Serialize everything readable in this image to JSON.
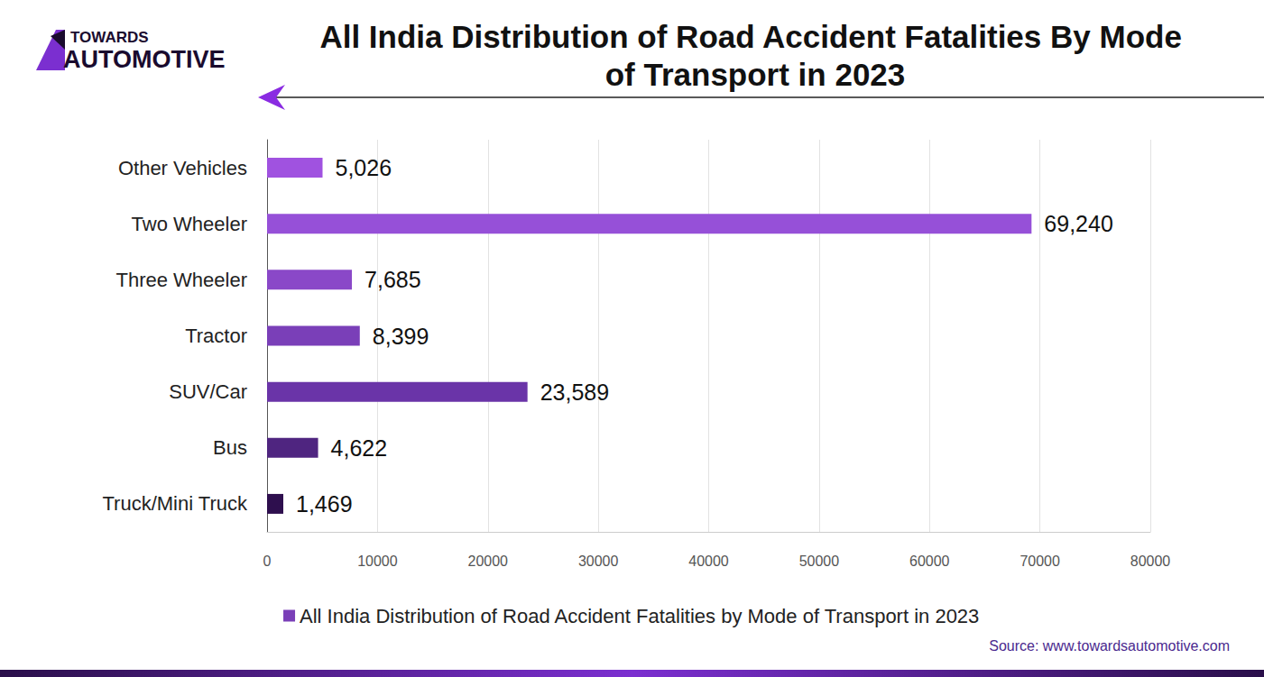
{
  "chart_data": {
    "type": "bar",
    "orientation": "horizontal",
    "title": "All India Distribution of Road Accident Fatalities By Mode of Transport in 2023",
    "logo": [
      "TOWARDS",
      "AUTOMOTIVE"
    ],
    "source": "Source: www.towardsautomotive.com",
    "categories": [
      "Other Vehicles",
      "Two Wheeler",
      "Three Wheeler",
      "Tractor",
      "SUV/Car",
      "Bus",
      "Truck/Mini Truck"
    ],
    "series": [
      {
        "name": "All India Distribution of Road Accident Fatalities by Mode of Transport in 2023",
        "values": [
          5026,
          69240,
          7685,
          8399,
          23589,
          4622,
          1469
        ],
        "value_labels": [
          "5,026",
          "69,240",
          "7,685",
          "8,399",
          "23,589",
          "4,622",
          "1,469"
        ]
      }
    ],
    "colors": [
      "#a052e0",
      "#9650d8",
      "#8a48c8",
      "#7a3fb8",
      "#6a34a8",
      "#4f2580",
      "#2e0f4e"
    ],
    "xlim": [
      0,
      80000
    ],
    "xticks": [
      0,
      10000,
      20000,
      30000,
      40000,
      50000,
      60000,
      70000,
      80000
    ],
    "grid": true,
    "data_labels": true,
    "legend": "bottom"
  }
}
